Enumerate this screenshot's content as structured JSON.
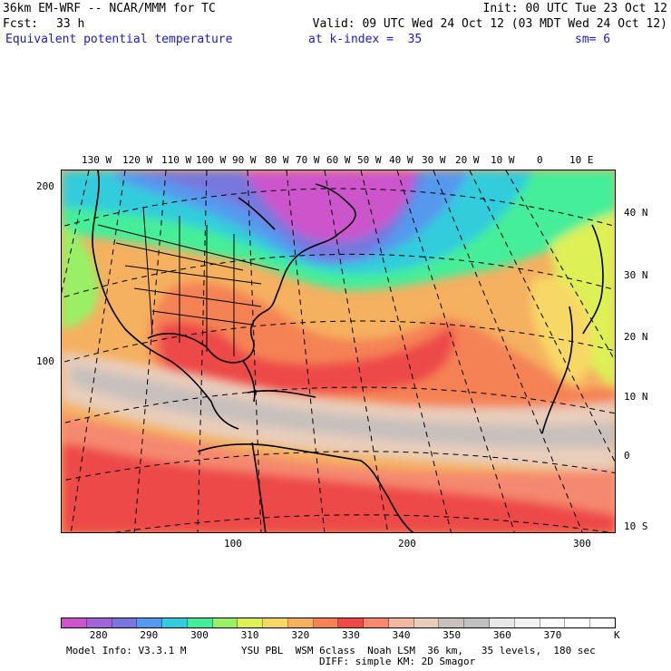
{
  "header": {
    "model_line": "36km EM-WRF -- NCAR/MMM for TC",
    "init_line": "Init: 00 UTC Tue 23 Oct 12",
    "fcst_label": "Fcst:",
    "fcst_value": "33 h",
    "valid_line": "Valid: 09 UTC Wed 24 Oct 12 (03 MDT Wed 24 Oct 12)",
    "field_name": "Equivalent potential temperature",
    "level": "at k-index =  35",
    "smoothing": "sm= 6"
  },
  "map": {
    "lon_labels": [
      "130 W",
      "120 W",
      "110 W",
      "100 W",
      "90 W",
      "80 W",
      "70 W",
      "60 W",
      "50 W",
      "40 W",
      "30 W",
      "20 W",
      "10 W",
      "0",
      "10 E"
    ],
    "lat_labels": [
      "40 N",
      "30 N",
      "20 N",
      "10 N",
      "0",
      "10 S"
    ],
    "grid_y_labels": [
      "200",
      "100"
    ],
    "grid_x_labels": [
      "100",
      "200",
      "300"
    ]
  },
  "colorbar": {
    "colors": [
      "#cc55cc",
      "#a066d6",
      "#7777dd",
      "#5599ee",
      "#33ccdd",
      "#44ee99",
      "#99f066",
      "#ddf055",
      "#f7d866",
      "#f5b060",
      "#f58255",
      "#ee4848",
      "#f58870",
      "#f0b8a0",
      "#e8cdbb",
      "#c8c0bc",
      "#bfbfbf",
      "#e8e8e8",
      "#f2f2f2",
      "#fafafa",
      "#ffffff",
      "#ffffff"
    ],
    "labels": [
      "280",
      "290",
      "300",
      "310",
      "320",
      "330",
      "340",
      "350",
      "360",
      "370"
    ],
    "unit": "K"
  },
  "footer": {
    "model_info": "Model Info: V3.3.1 M",
    "physics": "YSU PBL  WSM 6class  Noah LSM  36 km,   35 levels,  180 sec",
    "diffusion": "DIFF: simple KM: 2D Smagor"
  }
}
